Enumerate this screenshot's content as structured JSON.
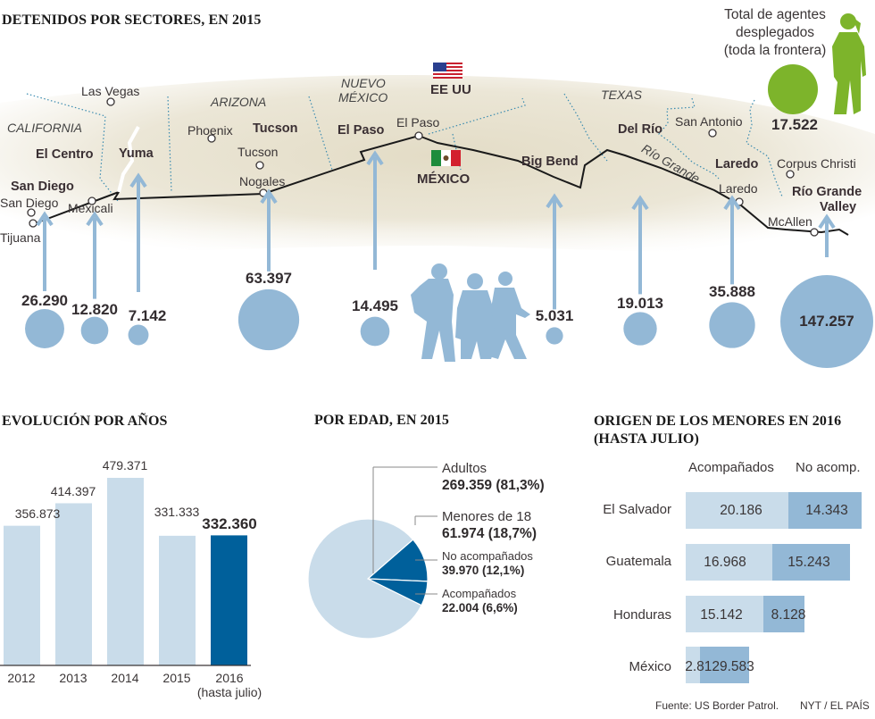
{
  "map": {
    "title": "DETENIDOS POR SECTORES, EN 2015",
    "country_us": "EE UU",
    "country_mx": "MÉXICO",
    "flag_us": "us-flag-icon",
    "flag_mx": "mexico-flag-icon",
    "states": [
      "CALIFORNIA",
      "ARIZONA",
      "NUEVO",
      "MÉXICO",
      "TEXAS"
    ],
    "cities": [
      "Las Vegas",
      "Phoenix",
      "Tucson",
      "Nogales",
      "San Diego",
      "Tijuana",
      "Mexicali",
      "El Paso",
      "San Antonio",
      "Laredo",
      "Corpus Christi",
      "McAllen"
    ],
    "river": "Río Grande",
    "sectors": [
      {
        "name": "San Diego",
        "value": 26290,
        "label": "26.290"
      },
      {
        "name": "El Centro",
        "value": 12820,
        "label": "12.820"
      },
      {
        "name": "Yuma",
        "value": 7142,
        "label": "7.142"
      },
      {
        "name": "Tucson",
        "value": 63397,
        "label": "63.397"
      },
      {
        "name": "El Paso",
        "value": 14495,
        "label": "14.495"
      },
      {
        "name": "Big Bend",
        "value": 5031,
        "label": "5.031"
      },
      {
        "name": "Del Río",
        "value": 19013,
        "label": "19.013"
      },
      {
        "name": "Laredo",
        "value": 35888,
        "label": "35.888"
      },
      {
        "name": "Río Grande",
        "name2": "Valley",
        "value": 147257,
        "label": "147.257"
      }
    ],
    "agents": {
      "line1": "Total de agentes",
      "line2": "desplegados",
      "line3": "(toda la frontera)",
      "value": 17522,
      "label": "17.522",
      "color": "#7db42b"
    },
    "bubble_color": "#93b8d6"
  },
  "chart_data": [
    {
      "type": "bar",
      "title": "EVOLUCIÓN POR AÑOS",
      "categories": [
        "2012",
        "2013",
        "2014",
        "2015",
        "2016"
      ],
      "category_note": "(hasta julio)",
      "values": [
        356873,
        414397,
        479371,
        331333,
        332360
      ],
      "labels": [
        "356.873",
        "414.397",
        "479.371",
        "331.333",
        "332.360"
      ],
      "highlight_index": 4,
      "colors": {
        "normal": "#c9dcea",
        "highlight": "#00609b"
      },
      "ylim": [
        0,
        500000
      ],
      "xlabel": "",
      "ylabel": "",
      "grid": false
    },
    {
      "type": "pie",
      "title": "POR EDAD, EN 2015",
      "slices": [
        {
          "name": "Adultos",
          "value": 269359,
          "label": "269.359 (81,3%)",
          "color": "#c9dcea"
        },
        {
          "name": "No acompañados",
          "value": 39970,
          "label": "39.970 (12,1%)",
          "color": "#00609b"
        },
        {
          "name": "Acompañados",
          "value": 22004,
          "label": "22.004 (6,6%)",
          "color": "#00609b"
        }
      ],
      "group": {
        "name": "Menores de 18",
        "value": 61974,
        "label": "61.974 (18,7%)"
      }
    },
    {
      "type": "bar",
      "orientation": "horizontal-stacked",
      "title": "ORIGEN DE LOS MENORES EN 2016",
      "title2": "(HASTA JULIO)",
      "categories": [
        "El Salvador",
        "Guatemala",
        "Honduras",
        "México"
      ],
      "series": [
        {
          "name": "Acompañados",
          "values": [
            20186,
            16968,
            15142,
            2812
          ],
          "labels": [
            "20.186",
            "16.968",
            "15.142",
            "2.812"
          ],
          "color": "#c9dcea"
        },
        {
          "name": "No acomp.",
          "values": [
            14343,
            15243,
            8128,
            9583
          ],
          "labels": [
            "14.343",
            "15.243",
            "8.128",
            "9.583"
          ],
          "color": "#93b8d6"
        }
      ],
      "mexico_combined_label": "2.8129.583"
    }
  ],
  "footer": {
    "source": "Fuente: US Border Patrol.",
    "credit": "NYT /  EL PAÍS"
  }
}
